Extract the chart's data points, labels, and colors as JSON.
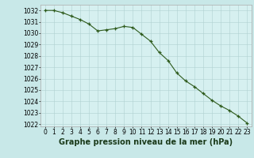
{
  "x": [
    0,
    1,
    2,
    3,
    4,
    5,
    6,
    7,
    8,
    9,
    10,
    11,
    12,
    13,
    14,
    15,
    16,
    17,
    18,
    19,
    20,
    21,
    22,
    23
  ],
  "y": [
    1032.0,
    1032.0,
    1031.8,
    1031.5,
    1031.2,
    1030.8,
    1030.2,
    1030.3,
    1030.4,
    1030.6,
    1030.5,
    1029.9,
    1029.3,
    1028.3,
    1027.6,
    1026.5,
    1025.8,
    1025.3,
    1024.7,
    1024.1,
    1023.6,
    1023.2,
    1022.7,
    1022.1
  ],
  "ylim": [
    1021.8,
    1032.5
  ],
  "xlim": [
    -0.5,
    23.5
  ],
  "yticks": [
    1022,
    1023,
    1024,
    1025,
    1026,
    1027,
    1028,
    1029,
    1030,
    1031,
    1032
  ],
  "xticks": [
    0,
    1,
    2,
    3,
    4,
    5,
    6,
    7,
    8,
    9,
    10,
    11,
    12,
    13,
    14,
    15,
    16,
    17,
    18,
    19,
    20,
    21,
    22,
    23
  ],
  "line_color": "#2d5a1b",
  "marker_color": "#2d5a1b",
  "bg_color": "#d6f0f0",
  "grid_color": "#b0d0d0",
  "xlabel": "Graphe pression niveau de la mer (hPa)",
  "xlabel_fontsize": 7,
  "tick_fontsize": 5.5,
  "fig_bg": "#c8e8e8"
}
